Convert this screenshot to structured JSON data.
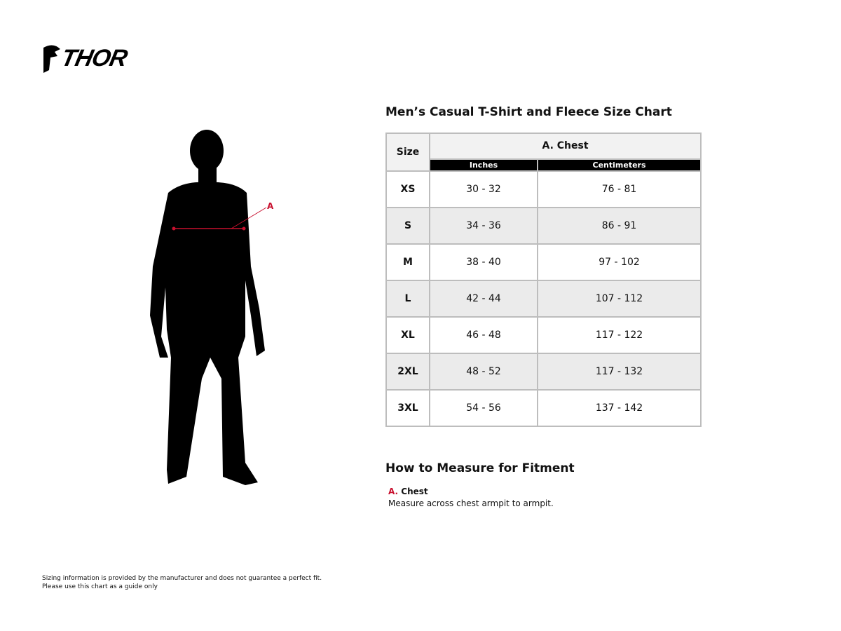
{
  "brand": {
    "logo_text": "THOR"
  },
  "figure": {
    "marker_label": "A",
    "marker_color": "#c8102e"
  },
  "chart": {
    "title": "Men’s Casual T-Shirt and Fleece Size Chart",
    "size_header": "Size",
    "group_header": "A. Chest",
    "sub_headers": [
      "Inches",
      "Centimeters"
    ],
    "rows": [
      {
        "size": "XS",
        "inches": "30 - 32",
        "cm": "76 - 81"
      },
      {
        "size": "S",
        "inches": "34 - 36",
        "cm": "86 - 91"
      },
      {
        "size": "M",
        "inches": "38 - 40",
        "cm": "97 - 102"
      },
      {
        "size": "L",
        "inches": "42 - 44",
        "cm": "107 - 112"
      },
      {
        "size": "XL",
        "inches": "46 - 48",
        "cm": "117 - 122"
      },
      {
        "size": "2XL",
        "inches": "48 - 52",
        "cm": "117 - 132"
      },
      {
        "size": "3XL",
        "inches": "54 - 56",
        "cm": "137 - 142"
      }
    ]
  },
  "measure": {
    "title": "How to Measure for Fitment",
    "letter": "A.",
    "label": "Chest",
    "description": "Measure across chest armpit to armpit."
  },
  "disclaimer": {
    "line1": "Sizing information is provided by the manufacturer and does not guarantee a perfect fit.",
    "line2": "Please use this chart as a guide only"
  }
}
